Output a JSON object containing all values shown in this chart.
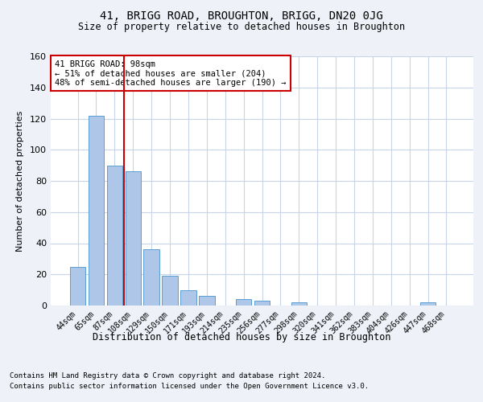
{
  "title1": "41, BRIGG ROAD, BROUGHTON, BRIGG, DN20 0JG",
  "title2": "Size of property relative to detached houses in Broughton",
  "xlabel": "Distribution of detached houses by size in Broughton",
  "ylabel": "Number of detached properties",
  "categories": [
    "44sqm",
    "65sqm",
    "87sqm",
    "108sqm",
    "129sqm",
    "150sqm",
    "171sqm",
    "193sqm",
    "214sqm",
    "235sqm",
    "256sqm",
    "277sqm",
    "298sqm",
    "320sqm",
    "341sqm",
    "362sqm",
    "383sqm",
    "404sqm",
    "426sqm",
    "447sqm",
    "468sqm"
  ],
  "values": [
    25,
    122,
    90,
    86,
    36,
    19,
    10,
    6,
    0,
    4,
    3,
    0,
    2,
    0,
    0,
    0,
    0,
    0,
    0,
    2,
    0
  ],
  "bar_color": "#aec6e8",
  "bar_edge_color": "#5a9fd4",
  "vline_x": 2.5,
  "vline_color": "#cc0000",
  "annotation_text": "41 BRIGG ROAD: 98sqm\n← 51% of detached houses are smaller (204)\n48% of semi-detached houses are larger (190) →",
  "annotation_box_color": "#ffffff",
  "annotation_box_edge_color": "#cc0000",
  "ylim": [
    0,
    160
  ],
  "yticks": [
    0,
    20,
    40,
    60,
    80,
    100,
    120,
    140,
    160
  ],
  "footer1": "Contains HM Land Registry data © Crown copyright and database right 2024.",
  "footer2": "Contains public sector information licensed under the Open Government Licence v3.0.",
  "bg_color": "#eef2f8",
  "plot_bg_color": "#ffffff",
  "grid_color": "#c8d4e8"
}
